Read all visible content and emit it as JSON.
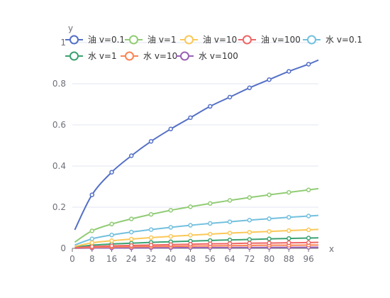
{
  "chart_data": {
    "type": "line",
    "title": "",
    "xlabel": "x",
    "ylabel": "y",
    "xlim": [
      0,
      100
    ],
    "ylim": [
      0,
      1
    ],
    "x_ticks": [
      "0",
      "8",
      "16",
      "24",
      "32",
      "40",
      "48",
      "56",
      "64",
      "72",
      "80",
      "88",
      "96"
    ],
    "y_ticks": [
      "0",
      "0.2",
      "0.4",
      "0.6",
      "0.8",
      "1"
    ],
    "grid": true,
    "legend_position": "top",
    "marker_x": [
      8,
      16,
      24,
      32,
      40,
      48,
      56,
      64,
      72,
      80,
      88,
      96
    ],
    "series": [
      {
        "name": "油 v=0.1",
        "color": "#5470c6",
        "values": [
          0.26,
          0.37,
          0.45,
          0.52,
          0.58,
          0.635,
          0.69,
          0.735,
          0.78,
          0.82,
          0.86,
          0.895
        ],
        "x_end": 100,
        "y_end": 0.915,
        "x_start": 1,
        "y_start": 0.09
      },
      {
        "name": "油 v=1",
        "color": "#91cc75",
        "values": [
          0.085,
          0.118,
          0.143,
          0.165,
          0.185,
          0.202,
          0.218,
          0.233,
          0.247,
          0.26,
          0.272,
          0.284
        ],
        "x_end": 100,
        "y_end": 0.29,
        "x_start": 1,
        "y_start": 0.03
      },
      {
        "name": "油 v=10",
        "color": "#fac858",
        "values": [
          0.027,
          0.037,
          0.045,
          0.052,
          0.058,
          0.064,
          0.069,
          0.074,
          0.078,
          0.082,
          0.086,
          0.09
        ],
        "x_end": 100,
        "y_end": 0.092,
        "x_start": 1,
        "y_start": 0.009
      },
      {
        "name": "油 v=100",
        "color": "#ee6666",
        "values": [
          0.008,
          0.012,
          0.014,
          0.016,
          0.018,
          0.02,
          0.022,
          0.023,
          0.025,
          0.026,
          0.027,
          0.028
        ],
        "x_end": 100,
        "y_end": 0.029,
        "x_start": 1,
        "y_start": 0.003
      },
      {
        "name": "水 v=0.1",
        "color": "#73c0de",
        "values": [
          0.046,
          0.065,
          0.079,
          0.091,
          0.102,
          0.112,
          0.121,
          0.129,
          0.137,
          0.144,
          0.151,
          0.157
        ],
        "x_end": 100,
        "y_end": 0.16,
        "x_start": 1,
        "y_start": 0.016
      },
      {
        "name": "水 v=1",
        "color": "#3ba272",
        "values": [
          0.015,
          0.021,
          0.025,
          0.029,
          0.032,
          0.035,
          0.038,
          0.041,
          0.043,
          0.046,
          0.048,
          0.05
        ],
        "x_end": 100,
        "y_end": 0.051,
        "x_start": 1,
        "y_start": 0.005
      },
      {
        "name": "水 v=10",
        "color": "#fc8452",
        "values": [
          0.005,
          0.007,
          0.008,
          0.009,
          0.01,
          0.011,
          0.012,
          0.013,
          0.014,
          0.015,
          0.015,
          0.016
        ],
        "x_end": 100,
        "y_end": 0.016,
        "x_start": 1,
        "y_start": 0.002
      },
      {
        "name": "水 v=100",
        "color": "#9a60b4",
        "values": [
          0.0015,
          0.002,
          0.0025,
          0.003,
          0.0032,
          0.0035,
          0.0038,
          0.004,
          0.0043,
          0.0046,
          0.0048,
          0.005
        ],
        "x_end": 100,
        "y_end": 0.005,
        "x_start": 1,
        "y_start": 0.0005
      }
    ]
  }
}
